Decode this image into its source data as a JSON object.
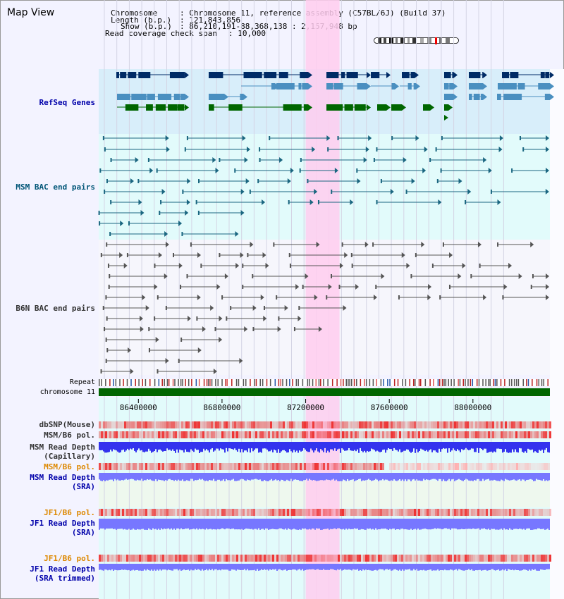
{
  "view_title": "Map View",
  "info": {
    "chromosome_key": "Chromosome",
    "chromosome_val": ": Chromosome 11, reference assembly (C57BL/6J) (Build 37)",
    "length_key": "Length (b.p.)",
    "length_val": ": 121,843,856",
    "show_key": "Show (b.p.)",
    "show_val": ": 86,210,191-88,368,138 : 2,157,948 bp",
    "coverage_key": "Read coverage check span",
    "coverage_val": ": 10,000"
  },
  "tracks": {
    "refseq": {
      "label": "RefSeq Genes",
      "color": "#0000aa"
    },
    "msm_bac": {
      "label": "MSM BAC end pairs",
      "color": "#005577"
    },
    "b6n_bac": {
      "label": "B6N BAC end pairs",
      "color": "#333333"
    },
    "repeat": {
      "label": "Repeat",
      "color": "#000000"
    },
    "chromosome": {
      "label": "chromosome 11",
      "color": "#000000"
    },
    "dbsnp": {
      "label": "dbSNP(Mouse)",
      "color": "#333333"
    },
    "msm_b6_pol": {
      "label": "MSM/B6 pol.",
      "color": "#333333"
    },
    "msm_depth_cap_1": {
      "label": "MSM Read Depth",
      "color": "#333333"
    },
    "msm_depth_cap_2": {
      "label": "(Capillary)",
      "color": "#333333"
    },
    "msm_b6_pol_sra": {
      "label": "MSM/B6 pol.",
      "color": "#dd8800"
    },
    "msm_depth_sra_1": {
      "label": "MSM Read Depth",
      "color": "#0000aa"
    },
    "msm_depth_sra_2": {
      "label": "(SRA)",
      "color": "#0000aa"
    },
    "jf1_b6_pol_sra": {
      "label": "JF1/B6 pol.",
      "color": "#dd8800"
    },
    "jf1_depth_sra_1": {
      "label": "JF1 Read Depth",
      "color": "#0000aa"
    },
    "jf1_depth_sra_2": {
      "label": "(SRA)",
      "color": "#0000aa"
    },
    "jf1_b6_pol_trim": {
      "label": "JF1/B6 pol.",
      "color": "#dd8800"
    },
    "jf1_depth_trim_1": {
      "label": "JF1 Read Depth",
      "color": "#0000aa"
    },
    "jf1_depth_trim_2": {
      "label": "(SRA trimmed)",
      "color": "#0000aa"
    }
  },
  "axis": {
    "start_bp": 86210191,
    "end_bp": 88368138,
    "ticks": [
      "86400000",
      "86800000",
      "87200000",
      "87600000",
      "88000000"
    ],
    "highlight_bp": [
      87200000,
      87362000
    ]
  },
  "colors": {
    "refseq_dark": "#002b66",
    "refseq_light": "#4a8fc0",
    "refseq_green": "#006600",
    "msm_bac": "#1a6680",
    "b6n_bac": "#555555",
    "chrom_bar": "#006600",
    "highlight": "#ffccee",
    "depth": "#3333ee",
    "depth_light": "#7777ff",
    "pol": "#ee3333"
  }
}
